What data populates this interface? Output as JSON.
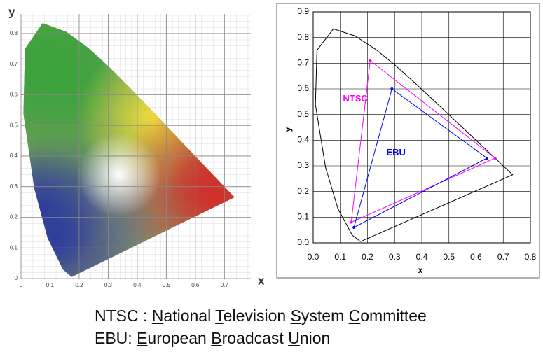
{
  "chart_data": [
    {
      "type": "chromaticity-image",
      "xlabel": "x",
      "ylabel": "y",
      "xlim": [
        0,
        0.75
      ],
      "ylim": [
        0,
        0.85
      ],
      "xticks": [
        0,
        0.1,
        0.2,
        0.3,
        0.4,
        0.5,
        0.6,
        0.7
      ],
      "yticks": [
        0,
        0.1,
        0.2,
        0.3,
        0.4,
        0.5,
        0.6,
        0.7,
        0.8
      ],
      "grid": true
    },
    {
      "type": "line",
      "xlabel": "x",
      "ylabel": "y",
      "xlim": [
        0,
        0.8
      ],
      "ylim": [
        0,
        0.9
      ],
      "xticks": [
        {
          "value": 0,
          "label": "0.0"
        },
        0.1,
        0.2,
        0.3,
        0.4,
        0.5,
        0.6,
        0.7,
        0.8
      ],
      "yticks": [
        {
          "value": 0,
          "label": "0.0"
        },
        0.1,
        0.2,
        0.3,
        0.4,
        0.5,
        0.6,
        0.7,
        0.8,
        0.9
      ],
      "grid": true,
      "series": [
        {
          "color": "#000000",
          "x": [
            0.1741,
            0.144,
            0.0913,
            0.0454,
            0.0082,
            0.0139,
            0.0743,
            0.1547,
            0.2296,
            0.3016,
            0.3731,
            0.4441,
            0.5125,
            0.5752,
            0.627,
            0.6658,
            0.6915,
            0.7079,
            0.7347,
            0.1741
          ],
          "values": [
            0.005,
            0.0297,
            0.1327,
            0.295,
            0.5384,
            0.7502,
            0.8338,
            0.8059,
            0.7543,
            0.6923,
            0.6245,
            0.5547,
            0.4866,
            0.4242,
            0.3725,
            0.334,
            0.3083,
            0.292,
            0.2653,
            0.005
          ]
        },
        {
          "name": "NTSC",
          "color": "#ff00ff",
          "x": [
            0.67,
            0.21,
            0.14,
            0.67
          ],
          "values": [
            0.33,
            0.71,
            0.08,
            0.33
          ]
        },
        {
          "name": "EBU",
          "color": "#0000ff",
          "x": [
            0.64,
            0.29,
            0.15,
            0.64
          ],
          "values": [
            0.33,
            0.6,
            0.06,
            0.33
          ]
        }
      ]
    }
  ],
  "footer": [
    "NTSC : National Television System Committee",
    "EBU: European Broadcast Union"
  ]
}
